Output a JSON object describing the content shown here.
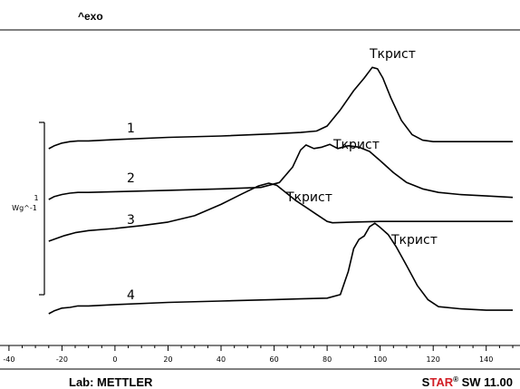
{
  "chart_data": {
    "type": "line",
    "exo_label": "^exo",
    "xlim": [
      -42,
      150
    ],
    "x_ticks": [
      -40,
      -20,
      0,
      20,
      40,
      60,
      80,
      100,
      120,
      140
    ],
    "scale_bar": {
      "value": "1",
      "unit": "Wg^-1"
    },
    "lab_label": "Lab: METTLER",
    "software": {
      "brand_s": "S",
      "brand_tar": "TAR",
      "registered": "®",
      "rest": " SW 11.00"
    },
    "series": [
      {
        "name": "1",
        "annotation": "Ткрист",
        "x": [
          -25,
          -23,
          -20,
          -17,
          -14,
          -10,
          0,
          20,
          40,
          60,
          70,
          76,
          80,
          85,
          90,
          94,
          97,
          99,
          101,
          104,
          108,
          112,
          116,
          120,
          140,
          150
        ],
        "y": [
          0.0,
          0.04,
          0.08,
          0.1,
          0.11,
          0.11,
          0.13,
          0.16,
          0.18,
          0.21,
          0.23,
          0.25,
          0.32,
          0.55,
          0.82,
          1.0,
          1.15,
          1.13,
          1.0,
          0.72,
          0.4,
          0.2,
          0.12,
          0.1,
          0.1,
          0.1
        ]
      },
      {
        "name": "2",
        "annotation": "Ткрист",
        "x": [
          -25,
          -23,
          -20,
          -17,
          -14,
          -10,
          0,
          20,
          40,
          55,
          62,
          67,
          70,
          72,
          75,
          78,
          81,
          84,
          88,
          92,
          96,
          100,
          105,
          110,
          116,
          122,
          130,
          140,
          150
        ],
        "y": [
          0.0,
          0.04,
          0.07,
          0.09,
          0.1,
          0.1,
          0.11,
          0.13,
          0.15,
          0.17,
          0.24,
          0.46,
          0.7,
          0.77,
          0.72,
          0.74,
          0.78,
          0.72,
          0.76,
          0.74,
          0.68,
          0.55,
          0.38,
          0.24,
          0.15,
          0.1,
          0.07,
          0.05,
          0.03
        ]
      },
      {
        "name": "3",
        "annotation": "Ткрист",
        "x": [
          -25,
          -22,
          -19,
          -15,
          -10,
          0,
          10,
          20,
          30,
          40,
          48,
          54,
          58,
          61,
          64,
          68,
          72,
          76,
          80,
          82,
          90,
          100,
          120,
          150
        ],
        "y": [
          0.0,
          0.04,
          0.08,
          0.12,
          0.15,
          0.18,
          0.22,
          0.27,
          0.36,
          0.52,
          0.67,
          0.78,
          0.82,
          0.79,
          0.7,
          0.58,
          0.48,
          0.38,
          0.28,
          0.26,
          0.27,
          0.28,
          0.28,
          0.28
        ]
      },
      {
        "name": "4",
        "annotation": "Ткрист",
        "x": [
          -25,
          -23,
          -20,
          -17,
          -14,
          -10,
          0,
          20,
          40,
          60,
          70,
          80,
          85,
          88,
          90,
          92,
          94,
          96,
          98,
          100,
          103,
          106,
          110,
          114,
          118,
          122,
          130,
          140,
          150
        ],
        "y": [
          0.0,
          0.04,
          0.08,
          0.09,
          0.11,
          0.11,
          0.13,
          0.16,
          0.18,
          0.2,
          0.21,
          0.22,
          0.27,
          0.6,
          0.92,
          1.05,
          1.1,
          1.23,
          1.28,
          1.22,
          1.12,
          0.95,
          0.68,
          0.4,
          0.2,
          0.1,
          0.07,
          0.05,
          0.05
        ]
      }
    ]
  }
}
